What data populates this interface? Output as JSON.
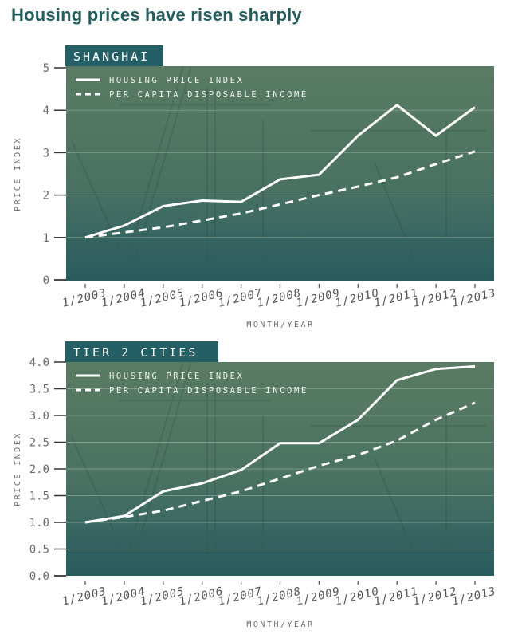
{
  "title": "Housing prices have risen sharply",
  "colors": {
    "title": "#245d5e",
    "label_box": "#245f66",
    "panel_top": "#5a7b63",
    "panel_bottom": "#2b5e61",
    "gridline": "#8fa99a",
    "line": "#ffffff",
    "axis_text": "#6b6b6b",
    "axis_line": "#333333"
  },
  "legend": {
    "solid": "HOUSING PRICE INDEX",
    "dashed": "PER CAPITA DISPOSABLE INCOME"
  },
  "chart_data": [
    {
      "type": "line",
      "title": "SHANGHAI",
      "xlabel": "MONTH/YEAR",
      "ylabel": "PRICE INDEX",
      "categories": [
        "1/2003",
        "1/2004",
        "1/2005",
        "1/2006",
        "1/2007",
        "1/2008",
        "1/2009",
        "1/2010",
        "1/2011",
        "1/2012",
        "1/2013"
      ],
      "yticks": [
        "0",
        "1",
        "2",
        "3",
        "4",
        "5"
      ],
      "ytick_values": [
        0,
        1,
        2,
        3,
        4,
        5
      ],
      "ylim": [
        0,
        5
      ],
      "grid": true,
      "legend_position": "top-left",
      "series": [
        {
          "name": "HOUSING PRICE INDEX",
          "style": "solid",
          "values": [
            1.0,
            1.28,
            1.74,
            1.87,
            1.84,
            2.37,
            2.48,
            3.4,
            4.12,
            3.4,
            4.07
          ]
        },
        {
          "name": "PER CAPITA DISPOSABLE INCOME",
          "style": "dashed",
          "values": [
            1.0,
            1.12,
            1.24,
            1.4,
            1.57,
            1.78,
            2.0,
            2.2,
            2.42,
            2.73,
            3.03
          ]
        }
      ]
    },
    {
      "type": "line",
      "title": "TIER 2 CITIES",
      "xlabel": "MONTH/YEAR",
      "ylabel": "PRICE INDEX",
      "categories": [
        "1/2003",
        "1/2004",
        "1/2005",
        "1/2006",
        "1/2007",
        "1/2008",
        "1/2009",
        "1/2010",
        "1/2011",
        "1/2012",
        "1/2013"
      ],
      "yticks": [
        "0.0",
        "0.5",
        "1.0",
        "1.5",
        "2.0",
        "2.5",
        "3.0",
        "3.5",
        "4.0"
      ],
      "ytick_values": [
        0,
        0.5,
        1,
        1.5,
        2,
        2.5,
        3,
        3.5,
        4
      ],
      "ylim": [
        0,
        4
      ],
      "grid": true,
      "legend_position": "top-left",
      "series": [
        {
          "name": "HOUSING PRICE INDEX",
          "style": "solid",
          "values": [
            1.0,
            1.12,
            1.58,
            1.73,
            1.98,
            2.48,
            2.48,
            2.92,
            3.66,
            3.87,
            3.92
          ]
        },
        {
          "name": "PER CAPITA DISPOSABLE INCOME",
          "style": "dashed",
          "values": [
            1.0,
            1.1,
            1.22,
            1.4,
            1.58,
            1.82,
            2.06,
            2.26,
            2.53,
            2.92,
            3.24
          ]
        }
      ]
    }
  ]
}
